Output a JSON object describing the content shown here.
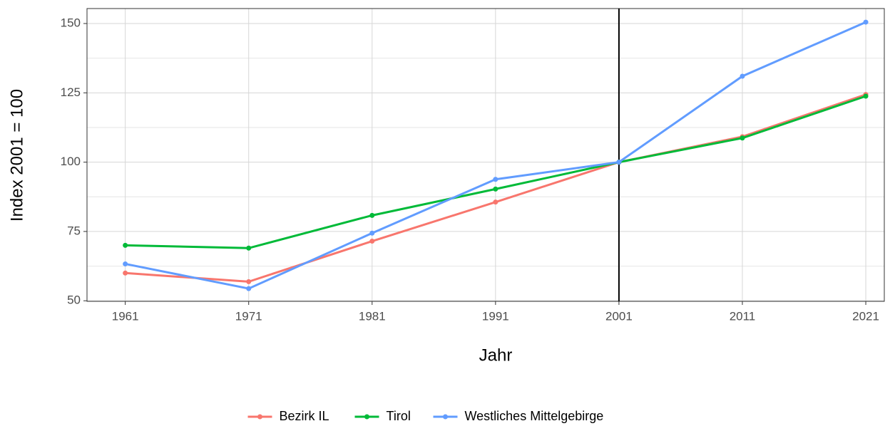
{
  "chart_data": {
    "type": "line",
    "x_label": "Jahr",
    "y_label": "Index 2001 = 100",
    "x": [
      1961,
      1971,
      1981,
      1991,
      2001,
      2011,
      2021
    ],
    "series": [
      {
        "name": "Bezirk IL",
        "color": "#F8766D",
        "values": [
          60,
          56.9,
          71.5,
          85.6,
          100,
          109.2,
          124.4
        ]
      },
      {
        "name": "Tirol",
        "color": "#00BA38",
        "values": [
          70,
          69,
          80.8,
          90.3,
          100,
          108.7,
          123.8
        ]
      },
      {
        "name": "Westliches Mittelgebirge",
        "color": "#619CFF",
        "values": [
          63.3,
          54.4,
          74.4,
          93.8,
          100,
          131,
          150.5
        ]
      }
    ],
    "xlim": [
      1957.9,
      2022.5
    ],
    "xticks": [
      1961,
      1971,
      1981,
      1991,
      2001,
      2011,
      2021
    ],
    "ylim": [
      49.8,
      155.4
    ],
    "yticks": [
      50,
      75,
      100,
      125,
      150
    ],
    "y_minor_ticks": [
      62.5,
      87.5,
      112.5,
      137.5
    ],
    "vline": 2001,
    "vline_color": "#000000",
    "grid": true,
    "legend": "bottom"
  }
}
